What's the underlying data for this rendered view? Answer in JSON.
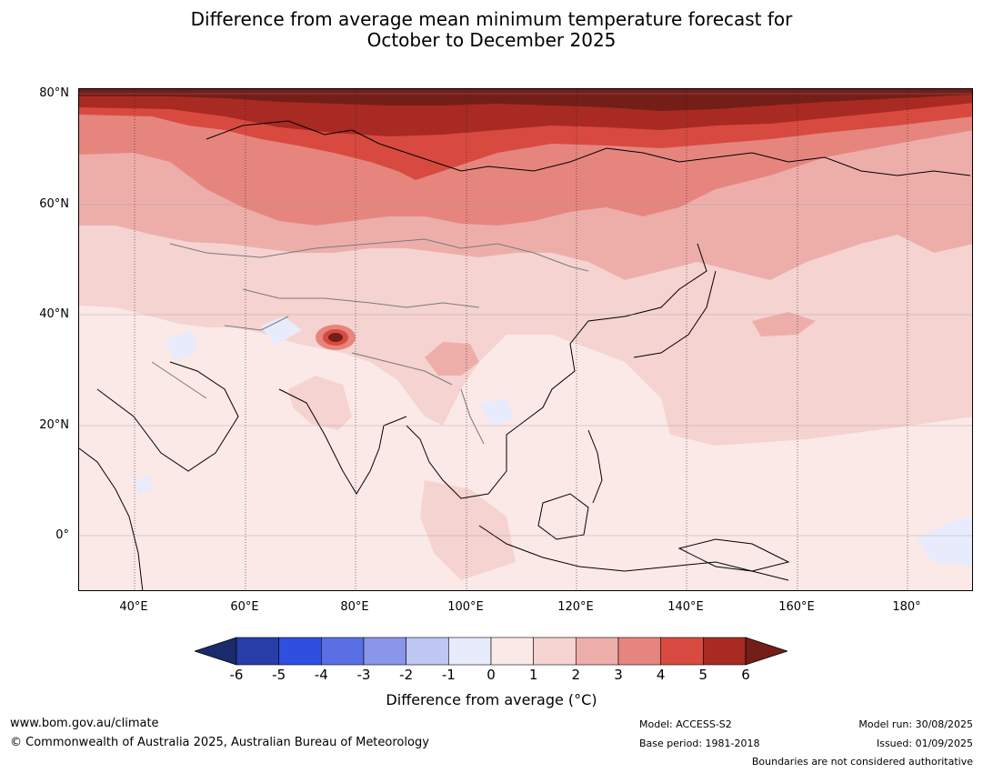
{
  "title": {
    "line1": "Difference from average mean minimum temperature forecast for",
    "line2": "October to December 2025"
  },
  "axes": {
    "lat_labels": [
      "80°N",
      "60°N",
      "40°N",
      "20°N",
      "0°"
    ],
    "lat_values": [
      80,
      60,
      40,
      20,
      0
    ],
    "lon_labels": [
      "40°E",
      "60°E",
      "80°E",
      "100°E",
      "120°E",
      "140°E",
      "160°E",
      "180°"
    ],
    "lon_values": [
      40,
      60,
      80,
      100,
      120,
      140,
      160,
      180
    ],
    "lon_range": [
      30,
      192
    ],
    "lat_range": [
      -10,
      81
    ]
  },
  "colorbar": {
    "ticks": [
      "-6",
      "-5",
      "-4",
      "-3",
      "-2",
      "-1",
      "0",
      "1",
      "2",
      "3",
      "4",
      "5",
      "6"
    ],
    "colors": {
      "lt_-6": "#1b2a6b",
      "-6_-5": "#273ea9",
      "-5_-4": "#2f4fe0",
      "-4_-3": "#5a6fe3",
      "-3_-2": "#8996ea",
      "-2_-1": "#bec6f3",
      "-1_0": "#e8ebfb",
      "0_1": "#fbe9e7",
      "1_2": "#f5d3d0",
      "2_3": "#edaeaa",
      "3_4": "#e6857e",
      "4_5": "#d84a40",
      "5_6": "#a82a23",
      "gt_6": "#741e18"
    },
    "label": "Difference from average (°C)"
  },
  "footer": {
    "url": "www.bom.gov.au/climate",
    "copyright": "© Commonwealth of Australia 2025, Australian Bureau of Meteorology",
    "model": "Model: ACCESS-S2",
    "base_period": "Base period: 1981-2018",
    "model_run": "Model run: 30/08/2025",
    "issued": "Issued: 01/09/2025",
    "disclaimer": "Boundaries are not considered authoritative"
  }
}
